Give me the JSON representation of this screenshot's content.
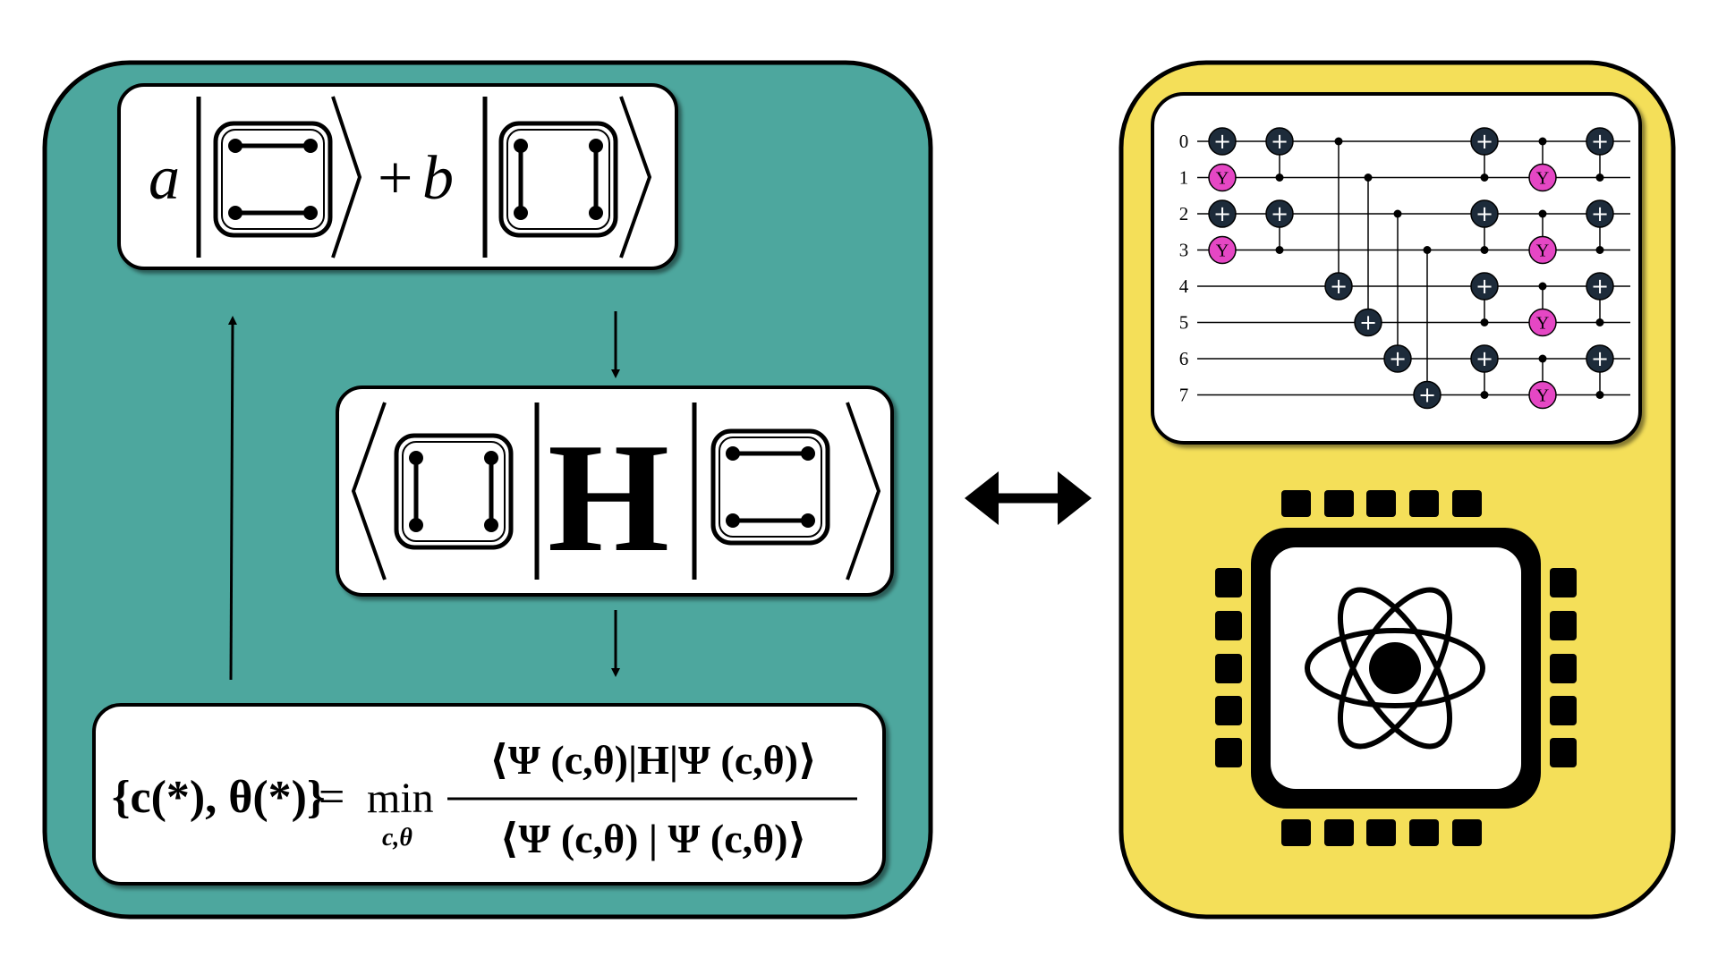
{
  "colors": {
    "left_panel": "#4da79e",
    "right_panel": "#f4df59",
    "gate_dark": "#1d2b3a",
    "gate_y": "#e547c4",
    "stroke": "#000000",
    "box": "#ffffff"
  },
  "state_box": {
    "coef_a": "a",
    "plus": "+",
    "coef_b": "b"
  },
  "expectation_box": {
    "operator": "H"
  },
  "objective_box": {
    "lhs": "{c(*), θ(*)}",
    "equals": "=",
    "min": "min",
    "min_sub": "c,θ",
    "numerator": "⟨Ψ (c,θ)|H|Ψ (c,θ)⟩",
    "denominator": "⟨Ψ (c,θ) | Ψ (c,θ)⟩"
  },
  "circuit": {
    "qubit_labels": [
      "0",
      "1",
      "2",
      "3",
      "4",
      "5",
      "6",
      "7"
    ],
    "x_gate_symbol": "+",
    "y_gate_label": "Y"
  },
  "icons": {
    "double_arrow": "double-arrow-icon",
    "chip": "quantum-chip-icon",
    "atom": "atom-icon"
  }
}
